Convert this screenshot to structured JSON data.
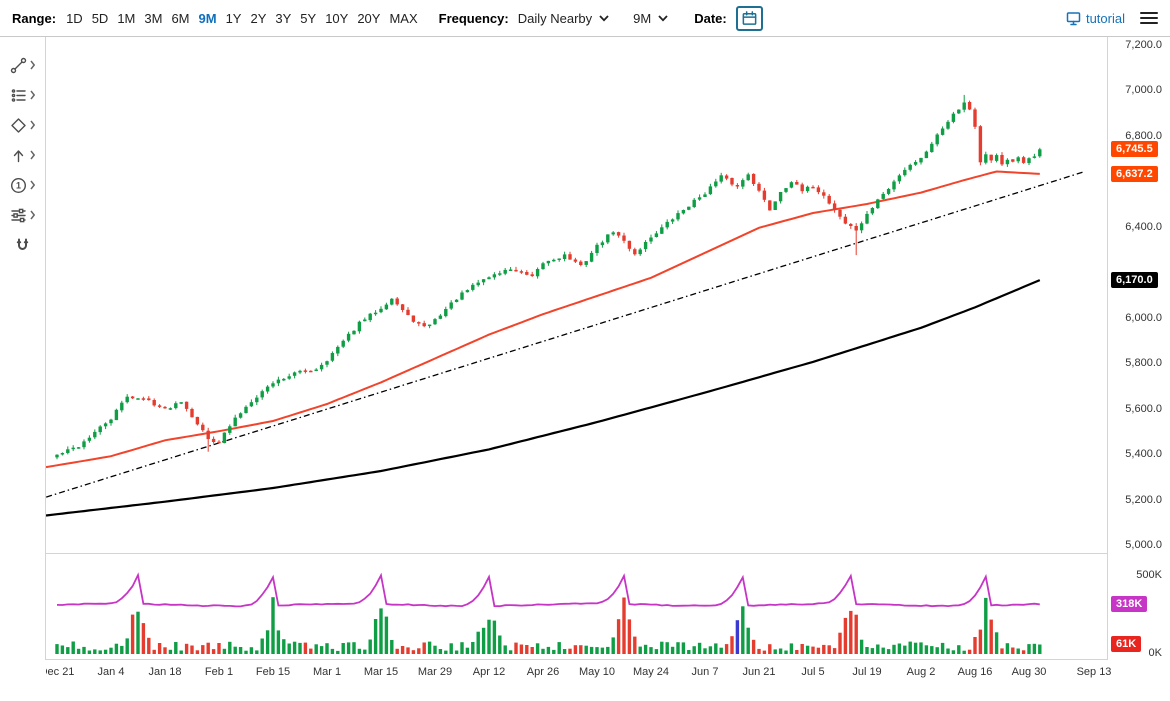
{
  "colors": {
    "accent_blue": "#0e6fbe",
    "candle_up": "#0f9d45",
    "candle_down": "#e43d30",
    "ma_fast": "#f1442b",
    "ma_slow": "#000000",
    "trendline": "#000000",
    "oi_line": "#c635c6",
    "badge_price": "#ff4700",
    "badge_ma_slow": "#000000",
    "badge_oi": "#c635c6",
    "badge_vol": "#e8251f",
    "axis_text": "#333333"
  },
  "toolbar": {
    "range_label": "Range:",
    "ranges": [
      "1D",
      "5D",
      "1M",
      "3M",
      "6M",
      "9M",
      "1Y",
      "2Y",
      "3Y",
      "5Y",
      "10Y",
      "20Y",
      "MAX"
    ],
    "active_range": "9M",
    "frequency_label": "Frequency:",
    "frequency_value": "Daily Nearby",
    "period_value": "9M",
    "date_label": "Date:",
    "tutorial_label": "tutorial"
  },
  "sidebar": {
    "tools": [
      "trendline",
      "indicators",
      "shapes",
      "arrows",
      "numbers",
      "adjustments",
      "magnet"
    ]
  },
  "chart_data": {
    "type": "candlestick",
    "description": "Daily Nearby futures price, 9-month range, with fast and slow moving averages, dash-dot trendline, volume bars and open-interest line",
    "x_labels": [
      "Dec 21",
      "Jan 4",
      "Jan 18",
      "Feb 1",
      "Feb 15",
      "Mar 1",
      "Mar 15",
      "Mar 29",
      "Apr 12",
      "Apr 26",
      "May 10",
      "May 24",
      "Jun 7",
      "Jun 21",
      "Jul 5",
      "Jul 19",
      "Aug 2",
      "Aug 16",
      "Aug 30",
      "Sep 13"
    ],
    "x_label_indices": [
      0,
      10,
      20,
      30,
      40,
      50,
      60,
      70,
      80,
      90,
      100,
      110,
      120,
      130,
      140,
      150,
      160,
      170,
      180,
      192
    ],
    "num_candles": 183,
    "price_axis": {
      "min": 5000,
      "max": 7200,
      "tick_step": 200,
      "visible_tick_labels": [
        "7,200.0",
        "7,000.0",
        "6,800.0",
        "6,400.0",
        "6,000.0",
        "5,800.0",
        "5,600.0",
        "5,400.0",
        "5,200.0",
        "5,000.0"
      ],
      "visible_tick_values": [
        7200,
        7000,
        6800,
        6400,
        6000,
        5800,
        5600,
        5400,
        5200,
        5000
      ]
    },
    "last_price": 6745.5,
    "last_price_label": "6,745.5",
    "close_anchors": [
      [
        0,
        5400
      ],
      [
        4,
        5440
      ],
      [
        8,
        5520
      ],
      [
        10,
        5560
      ],
      [
        13,
        5660
      ],
      [
        17,
        5640
      ],
      [
        20,
        5600
      ],
      [
        23,
        5640
      ],
      [
        26,
        5540
      ],
      [
        28,
        5470
      ],
      [
        30,
        5460
      ],
      [
        33,
        5560
      ],
      [
        36,
        5640
      ],
      [
        40,
        5720
      ],
      [
        44,
        5760
      ],
      [
        48,
        5780
      ],
      [
        50,
        5820
      ],
      [
        53,
        5900
      ],
      [
        56,
        5980
      ],
      [
        60,
        6050
      ],
      [
        62,
        6090
      ],
      [
        65,
        6010
      ],
      [
        68,
        5960
      ],
      [
        70,
        5995
      ],
      [
        74,
        6090
      ],
      [
        78,
        6160
      ],
      [
        80,
        6185
      ],
      [
        84,
        6220
      ],
      [
        88,
        6180
      ],
      [
        90,
        6245
      ],
      [
        94,
        6280
      ],
      [
        97,
        6230
      ],
      [
        100,
        6320
      ],
      [
        103,
        6385
      ],
      [
        105,
        6340
      ],
      [
        107,
        6285
      ],
      [
        110,
        6360
      ],
      [
        113,
        6420
      ],
      [
        116,
        6480
      ],
      [
        120,
        6555
      ],
      [
        123,
        6625
      ],
      [
        126,
        6580
      ],
      [
        128,
        6640
      ],
      [
        130,
        6560
      ],
      [
        132,
        6480
      ],
      [
        134,
        6560
      ],
      [
        136,
        6605
      ],
      [
        138,
        6560
      ],
      [
        140,
        6585
      ],
      [
        142,
        6540
      ],
      [
        144,
        6480
      ],
      [
        146,
        6420
      ],
      [
        148,
        6390
      ],
      [
        150,
        6455
      ],
      [
        152,
        6525
      ],
      [
        154,
        6570
      ],
      [
        156,
        6635
      ],
      [
        158,
        6680
      ],
      [
        160,
        6705
      ],
      [
        162,
        6775
      ],
      [
        164,
        6840
      ],
      [
        166,
        6905
      ],
      [
        168,
        6950
      ],
      [
        169,
        6925
      ],
      [
        170,
        6845
      ],
      [
        171,
        6690
      ],
      [
        172,
        6720
      ],
      [
        173,
        6690
      ],
      [
        174,
        6715
      ],
      [
        175,
        6680
      ],
      [
        176,
        6705
      ],
      [
        177,
        6685
      ],
      [
        178,
        6710
      ],
      [
        179,
        6680
      ],
      [
        180,
        6700
      ],
      [
        181,
        6715
      ],
      [
        182,
        6745.5
      ]
    ],
    "wick_events": [
      {
        "index": 28,
        "low": 5415
      },
      {
        "index": 148,
        "low": 6280
      },
      {
        "index": 168,
        "high": 6985
      },
      {
        "index": 171,
        "low": 6675
      }
    ],
    "ma_fast": {
      "label_value": 6637.2,
      "label": "6,637.2",
      "anchors": [
        [
          0,
          5355
        ],
        [
          10,
          5395
        ],
        [
          20,
          5465
        ],
        [
          30,
          5505
        ],
        [
          40,
          5550
        ],
        [
          50,
          5625
        ],
        [
          60,
          5720
        ],
        [
          70,
          5825
        ],
        [
          80,
          5930
        ],
        [
          90,
          6020
        ],
        [
          100,
          6100
        ],
        [
          110,
          6180
        ],
        [
          120,
          6290
        ],
        [
          130,
          6400
        ],
        [
          140,
          6465
        ],
        [
          150,
          6505
        ],
        [
          160,
          6555
        ],
        [
          168,
          6610
        ],
        [
          174,
          6648
        ],
        [
          182,
          6637.2
        ]
      ]
    },
    "ma_slow": {
      "label_value": 6170.0,
      "label": "6,170.0",
      "anchors": [
        [
          0,
          5140
        ],
        [
          20,
          5195
        ],
        [
          40,
          5255
        ],
        [
          60,
          5330
        ],
        [
          80,
          5425
        ],
        [
          100,
          5545
        ],
        [
          120,
          5675
        ],
        [
          140,
          5810
        ],
        [
          160,
          5960
        ],
        [
          170,
          6050
        ],
        [
          182,
          6170
        ]
      ]
    },
    "trendline": {
      "style": "dash-dot",
      "start_index": -2,
      "start_value": 5215,
      "end_index": 190,
      "end_value": 6645
    },
    "volume_pane": {
      "axis_tick_labels": [
        "500K",
        "0K"
      ],
      "axis_tick_values": [
        500,
        0
      ],
      "axis_max": 500,
      "roll_spike_indices": [
        15,
        40,
        60,
        80,
        105,
        127,
        147,
        172
      ],
      "base_range_k": [
        20,
        80
      ],
      "spike_peak_range_k": [
        220,
        400
      ],
      "highlight_bar": {
        "index": 126,
        "color": "#3a3ad0"
      },
      "last_volume_k": 61,
      "last_volume_label": "61K",
      "open_interest": {
        "baseline_k": 315,
        "spike_peak_k": 497,
        "last_value_k": 318,
        "last_value_label": "318K"
      }
    },
    "seed": 42
  }
}
